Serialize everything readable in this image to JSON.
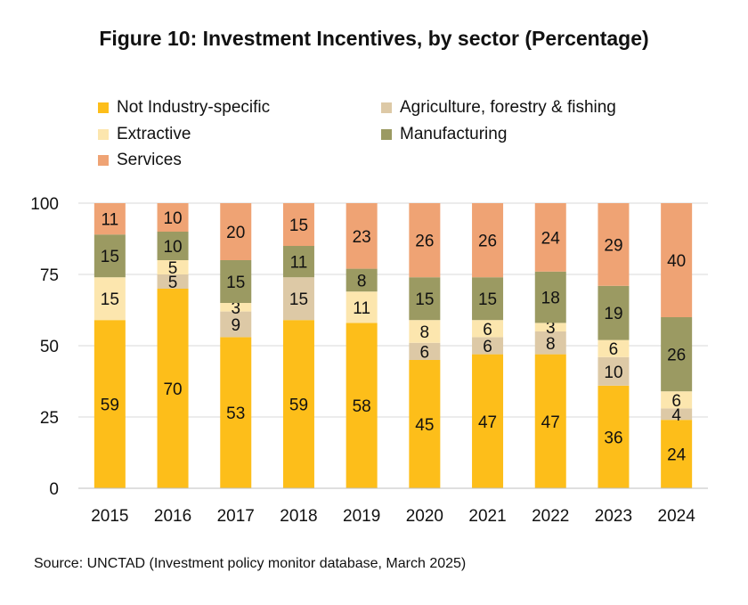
{
  "chart_data": {
    "type": "bar",
    "stacked": true,
    "title": "Figure 10: Investment Incentives, by sector (Percentage)",
    "categories": [
      "2015",
      "2016",
      "2017",
      "2018",
      "2019",
      "2020",
      "2021",
      "2022",
      "2023",
      "2024"
    ],
    "series": [
      {
        "name": "Not Industry-specific",
        "color": "#FDBE1A",
        "values": [
          59,
          70,
          53,
          59,
          58,
          45,
          47,
          47,
          36,
          24
        ]
      },
      {
        "name": "Agriculture, forestry & fishing",
        "color": "#DDC9A6",
        "values": [
          0,
          5,
          9,
          15,
          0,
          6,
          6,
          8,
          10,
          4
        ]
      },
      {
        "name": "Extractive",
        "color": "#FCE6AE",
        "values": [
          15,
          5,
          3,
          0,
          11,
          8,
          6,
          3,
          6,
          6
        ]
      },
      {
        "name": "Manufacturing",
        "color": "#9B9A62",
        "values": [
          15,
          10,
          15,
          11,
          8,
          15,
          15,
          18,
          19,
          26
        ]
      },
      {
        "name": "Services",
        "color": "#EFA374",
        "values": [
          11,
          10,
          20,
          15,
          23,
          26,
          26,
          24,
          29,
          40
        ]
      }
    ],
    "ylim": [
      0,
      100
    ],
    "yticks": [
      0,
      25,
      50,
      75,
      100
    ],
    "xlabel": "",
    "ylabel": "",
    "grid": true,
    "legend_position": "top"
  },
  "source": "Source: UNCTAD (Investment policy monitor database, March 2025)"
}
